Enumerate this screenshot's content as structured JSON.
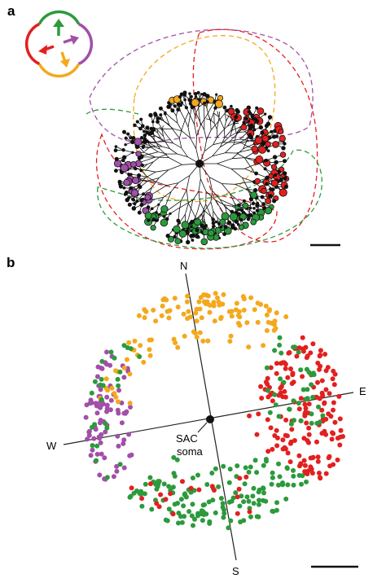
{
  "panel_a": {
    "label": "a",
    "legend_colors": {
      "green": "#2c9a3c",
      "purple": "#a24fa8",
      "red": "#e2201f",
      "orange": "#f4a81c"
    },
    "legend_arrows": [
      "up",
      "right",
      "down",
      "left"
    ]
  },
  "panel_b": {
    "label": "b",
    "directions": {
      "north": "N",
      "south": "S",
      "east": "E",
      "west": "W"
    },
    "center_label_1": "SAC",
    "center_label_2": "soma"
  },
  "colors": {
    "green": "#2c9a3c",
    "purple": "#a24fa8",
    "red": "#e2201f",
    "orange": "#f4a81c",
    "black": "#111111"
  }
}
